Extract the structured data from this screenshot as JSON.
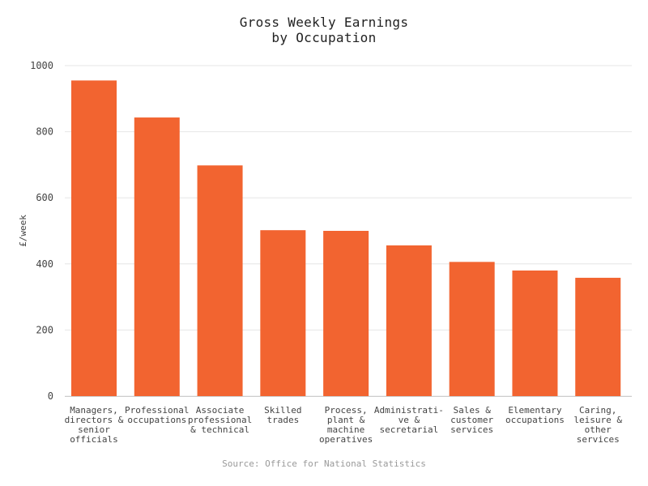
{
  "chart_data": {
    "type": "bar",
    "title_lines": [
      "Gross Weekly Earnings",
      "by Occupation"
    ],
    "ylabel": "£/week",
    "xlabel": "",
    "ylim": [
      0,
      1000
    ],
    "yticks": [
      0,
      200,
      400,
      600,
      800,
      1000
    ],
    "grid": true,
    "bar_color": "#f26430",
    "categories": [
      [
        "Managers,",
        "directors &",
        "senior",
        "officials"
      ],
      [
        "Professional",
        "occupations"
      ],
      [
        "Associate",
        "professional",
        "& technical"
      ],
      [
        "Skilled",
        "trades"
      ],
      [
        "Process,",
        "plant &",
        "machine",
        "operatives"
      ],
      [
        "Administrati-",
        "ve &",
        "secretarial"
      ],
      [
        "Sales &",
        "customer",
        "services"
      ],
      [
        "Elementary",
        "occupations"
      ],
      [
        "Caring,",
        "leisure &",
        "other",
        "services"
      ]
    ],
    "values": [
      955,
      843,
      698,
      502,
      500,
      456,
      406,
      380,
      358
    ],
    "source": "Source: Office for National Statistics"
  }
}
